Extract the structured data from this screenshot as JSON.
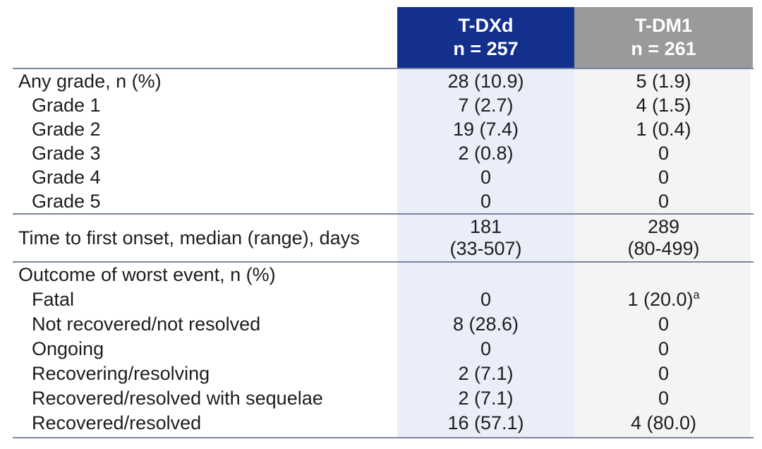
{
  "table": {
    "columns": [
      {
        "name": "T-DXd",
        "n_label": "n = 257"
      },
      {
        "name": "T-DM1",
        "n_label": "n = 261"
      }
    ],
    "colors": {
      "tdxd_header_bg": "#12308c",
      "tdm1_header_bg": "#9a9a9c",
      "tdxd_column_bg": "#e9eef8",
      "tdm1_column_bg": "#f4f4f5",
      "rule_color": "#7b84a0",
      "header_text": "#ffffff",
      "body_text": "#1d1d1f"
    },
    "sections": [
      {
        "rows": [
          {
            "label": "Any grade, n (%)",
            "tdxd": "28 (10.9)",
            "tdm1": "5 (1.9)"
          },
          {
            "label": "Grade 1",
            "tdxd": "7 (2.7)",
            "tdm1": "4 (1.5)"
          },
          {
            "label": "Grade 2",
            "tdxd": "19 (7.4)",
            "tdm1": "1 (0.4)"
          },
          {
            "label": "Grade 3",
            "tdxd": "2 (0.8)",
            "tdm1": "0"
          },
          {
            "label": "Grade 4",
            "tdxd": "0",
            "tdm1": "0"
          },
          {
            "label": "Grade 5",
            "tdxd": "0",
            "tdm1": "0"
          }
        ]
      },
      {
        "rows": [
          {
            "label": "Time to first onset, median (range), days",
            "tdxd_lines": [
              "181",
              "(33-507)"
            ],
            "tdm1_lines": [
              "289",
              "(80-499)"
            ]
          }
        ]
      },
      {
        "rows": [
          {
            "label": "Outcome of worst event, n (%)",
            "tdxd": "",
            "tdm1": ""
          },
          {
            "label": "Fatal",
            "tdxd": "0",
            "tdm1": "1 (20.0)",
            "tdm1_sup": "a"
          },
          {
            "label": "Not recovered/not resolved",
            "tdxd": "8 (28.6)",
            "tdm1": "0"
          },
          {
            "label": "Ongoing",
            "tdxd": "0",
            "tdm1": "0"
          },
          {
            "label": "Recovering/resolving",
            "tdxd": "2 (7.1)",
            "tdm1": "0"
          },
          {
            "label": "Recovered/resolved with sequelae",
            "tdxd": "2 (7.1)",
            "tdm1": "0"
          },
          {
            "label": "Recovered/resolved",
            "tdxd": "16 (57.1)",
            "tdm1": "4 (80.0)"
          }
        ]
      }
    ]
  }
}
